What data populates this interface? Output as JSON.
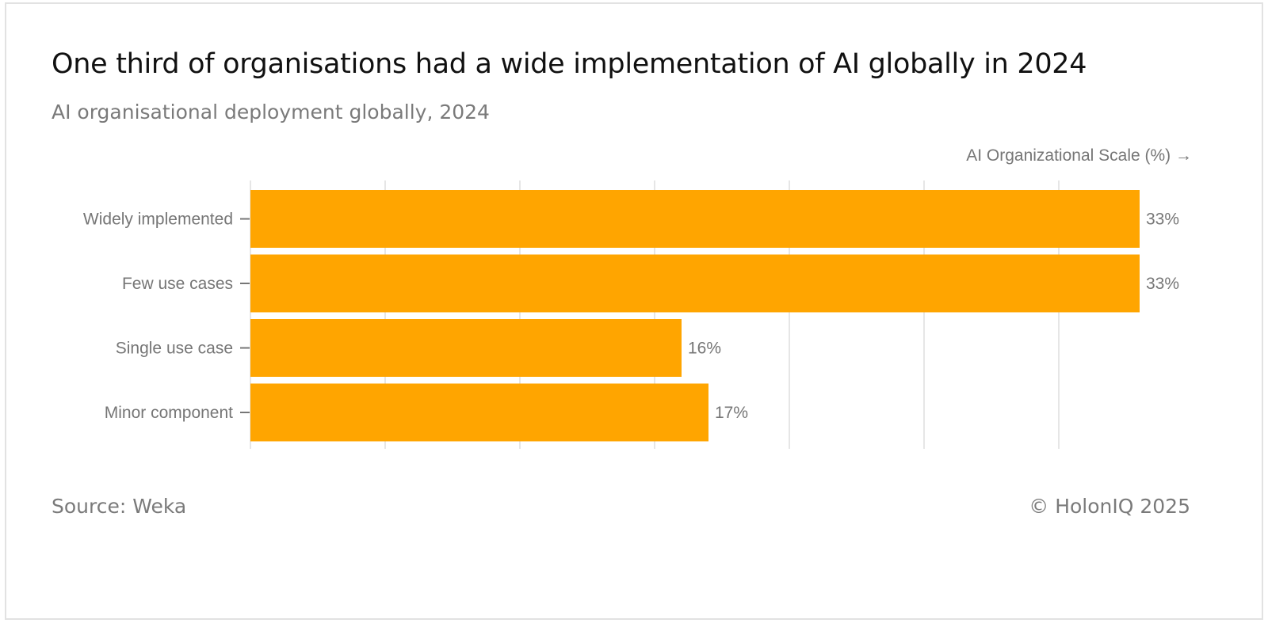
{
  "header": {
    "title": "One third of organisations had a wide implementation of AI globally in 2024",
    "subtitle": "AI organisational deployment globally, 2024"
  },
  "footer": {
    "source": "Source: Weka",
    "credit": "© HolonIQ 2025"
  },
  "colors": {
    "bar": "#FFA500",
    "grid": "#e6e6e6",
    "text": "#767676"
  },
  "chart_data": {
    "type": "bar",
    "orientation": "horizontal",
    "title": "One third of organisations had a wide implementation of AI globally in 2024",
    "subtitle": "AI organisational deployment globally, 2024",
    "xlabel": "AI Organizational Scale (%) →",
    "ylabel": "",
    "categories": [
      "Widely implemented",
      "Few use cases",
      "Single use case",
      "Minor component"
    ],
    "values": [
      33,
      33,
      16,
      17
    ],
    "value_labels": [
      "33%",
      "33%",
      "16%",
      "17%"
    ],
    "xlim": [
      0,
      35
    ],
    "grid_step": 5,
    "grid": true,
    "x_tick_labels_shown": false,
    "legend": "none"
  }
}
